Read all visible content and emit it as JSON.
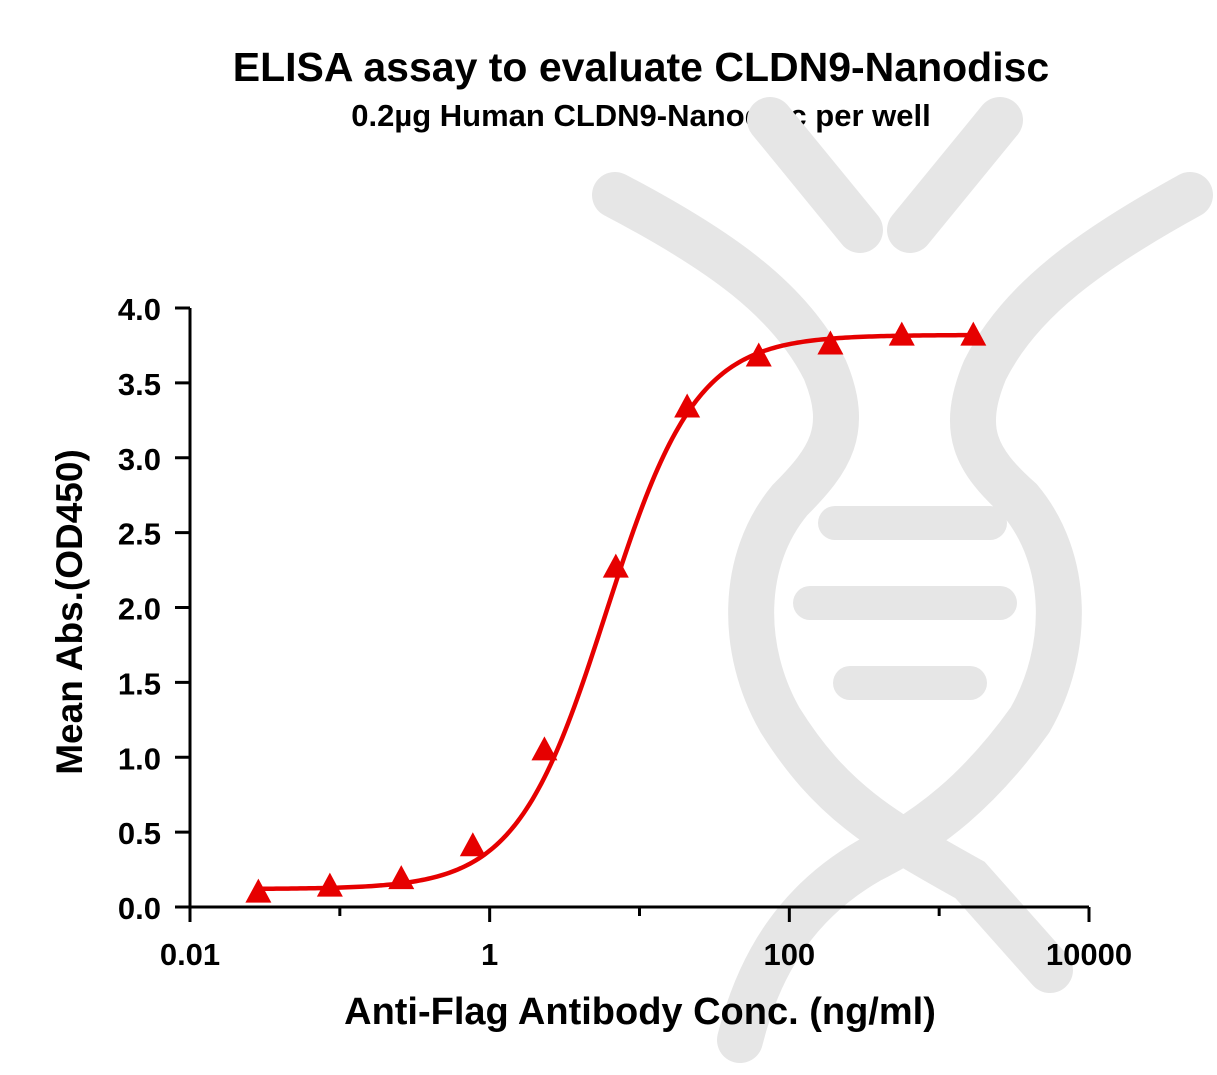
{
  "chart_data": {
    "type": "scatter",
    "title": "ELISA assay to evaluate CLDN9-Nanodisc",
    "subtitle": "0.2µg Human CLDN9-Nanodisc per well",
    "xlabel": "Anti-Flag Antibody Conc. (ng/ml)",
    "ylabel": "Mean Abs.(OD450)",
    "x_scale": "log",
    "xlim": [
      0.01,
      10000
    ],
    "ylim": [
      0,
      4.0
    ],
    "x_ticks": [
      {
        "value": 0.01,
        "label": "0.01"
      },
      {
        "value": 1,
        "label": "1"
      },
      {
        "value": 100,
        "label": "100"
      },
      {
        "value": 10000,
        "label": "10000"
      }
    ],
    "y_ticks": [
      {
        "value": 0.0,
        "label": "0.0"
      },
      {
        "value": 0.5,
        "label": "0.5"
      },
      {
        "value": 1.0,
        "label": "1.0"
      },
      {
        "value": 1.5,
        "label": "1.5"
      },
      {
        "value": 2.0,
        "label": "2.0"
      },
      {
        "value": 2.5,
        "label": "2.5"
      },
      {
        "value": 3.0,
        "label": "3.0"
      },
      {
        "value": 3.5,
        "label": "3.5"
      },
      {
        "value": 4.0,
        "label": "4.0"
      }
    ],
    "series": [
      {
        "marker": "triangle",
        "color": "#e60000",
        "x": [
          0.0286,
          0.0858,
          0.257,
          0.772,
          2.32,
          6.95,
          20.8,
          62.5,
          188,
          563,
          1690
        ],
        "y": [
          0.09,
          0.13,
          0.18,
          0.4,
          1.04,
          2.26,
          3.33,
          3.67,
          3.75,
          3.81,
          3.81
        ]
      }
    ],
    "fit_curve": {
      "color": "#e60000",
      "model": "4PL",
      "bottom": 0.12,
      "top": 3.82,
      "ec50": 6.0,
      "hill": 1.45
    },
    "grid": false,
    "legend": "none"
  },
  "watermark": {
    "name": "dna-logo-watermark",
    "color": "#e8e8e8"
  }
}
